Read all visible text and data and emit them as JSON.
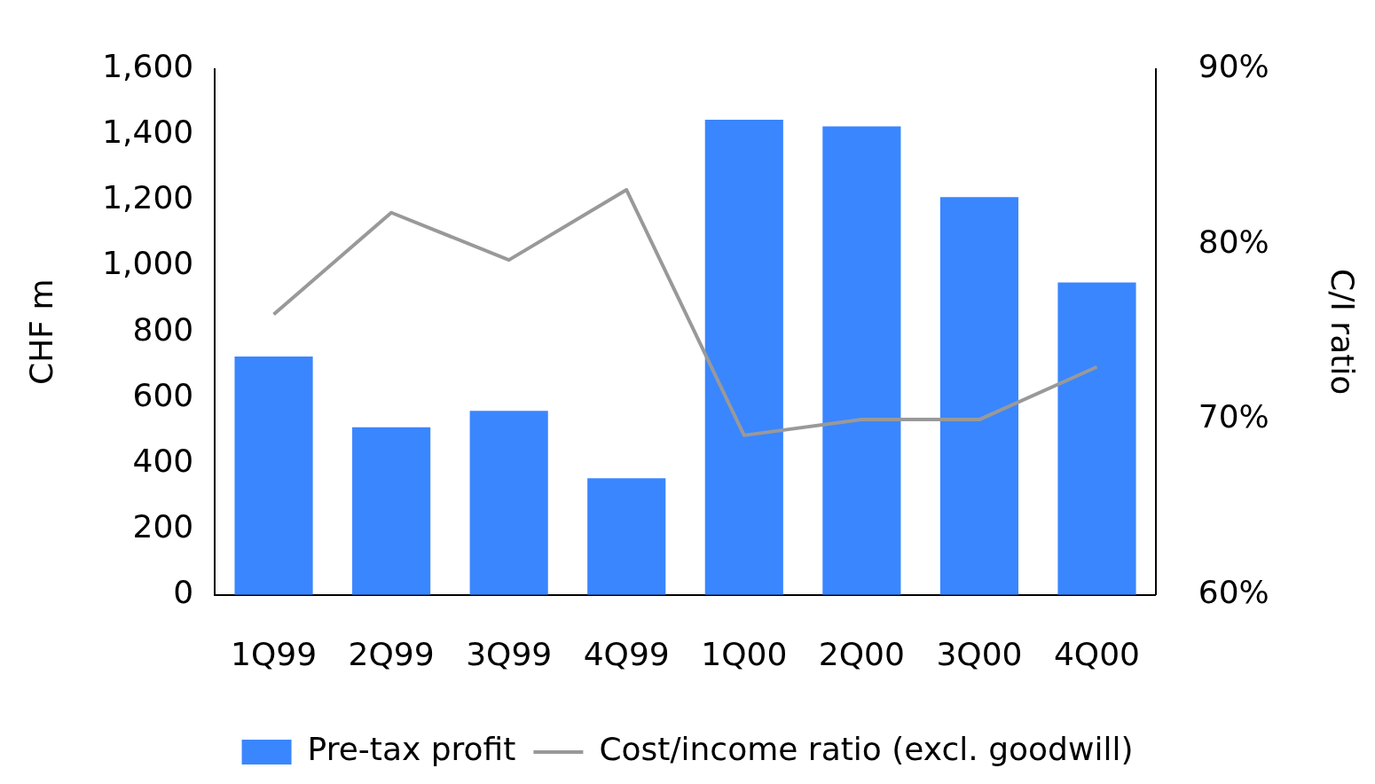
{
  "chart_data": {
    "type": "bar",
    "ylabel": "CHF m",
    "y2label": "C/I ratio",
    "categories": [
      "1Q99",
      "2Q99",
      "3Q99",
      "4Q99",
      "1Q00",
      "2Q00",
      "3Q00",
      "4Q00"
    ],
    "series": [
      {
        "name": "Pre-tax profit",
        "color": "#3a86ff",
        "values": [
          725,
          510,
          560,
          355,
          1445,
          1425,
          1210,
          950
        ]
      },
      {
        "name": "Cost/income ratio (excl. goodwill)",
        "type": "line",
        "axis": "y2",
        "color": "#999999",
        "values": [
          76,
          81.8,
          79.1,
          83.1,
          69.1,
          70,
          70,
          73
        ]
      }
    ],
    "ylim": [
      0,
      1600
    ],
    "yticks": [
      0,
      200,
      400,
      600,
      800,
      {
        "value": 1000,
        "label": "1,000"
      },
      {
        "value": 1200,
        "label": "1,200"
      },
      {
        "value": 1400,
        "label": "1,400"
      },
      {
        "value": 1600,
        "label": "1,600"
      }
    ],
    "y2lim": [
      60,
      90
    ],
    "y2ticks": [
      {
        "value": 60,
        "label": "60%"
      },
      {
        "value": 70,
        "label": "70%"
      },
      {
        "value": 80,
        "label": "80%"
      },
      {
        "value": 90,
        "label": "90%"
      }
    ],
    "legend": "bottom"
  }
}
